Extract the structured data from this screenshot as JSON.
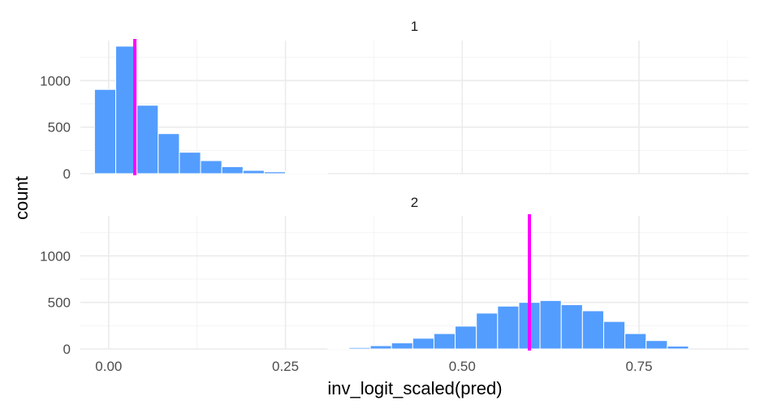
{
  "chart_data": {
    "type": "bar",
    "xlabel": "inv_logit_scaled(pred)",
    "ylabel": "count",
    "xlim": [
      -0.04,
      0.905
    ],
    "ylim": [
      0,
      1430
    ],
    "x_ticks": [
      0.0,
      0.25,
      0.5,
      0.75
    ],
    "x_tick_labels": [
      "0.00",
      "0.25",
      "0.50",
      "0.75"
    ],
    "y_ticks": [
      0,
      500,
      1000
    ],
    "y_tick_labels": [
      "0",
      "500",
      "1000"
    ],
    "bin_width": 0.03,
    "grid": true,
    "colors": {
      "bars": "#539dff",
      "vline": "#ff00ff"
    },
    "panels": [
      {
        "label": "1",
        "bin_centers": [
          -0.005,
          0.025,
          0.055,
          0.085,
          0.115,
          0.145,
          0.175,
          0.205,
          0.235,
          0.265,
          0.295
        ],
        "counts": [
          905,
          1370,
          735,
          430,
          230,
          140,
          75,
          35,
          20,
          8,
          3
        ],
        "vline_x": 0.037
      },
      {
        "label": "2",
        "bin_centers": [
          0.325,
          0.355,
          0.385,
          0.415,
          0.445,
          0.475,
          0.505,
          0.535,
          0.565,
          0.595,
          0.625,
          0.655,
          0.685,
          0.715,
          0.745,
          0.775,
          0.805
        ],
        "counts": [
          5,
          15,
          35,
          65,
          115,
          165,
          245,
          385,
          460,
          500,
          520,
          475,
          410,
          295,
          165,
          90,
          30
        ],
        "vline_x": 0.595
      }
    ]
  }
}
